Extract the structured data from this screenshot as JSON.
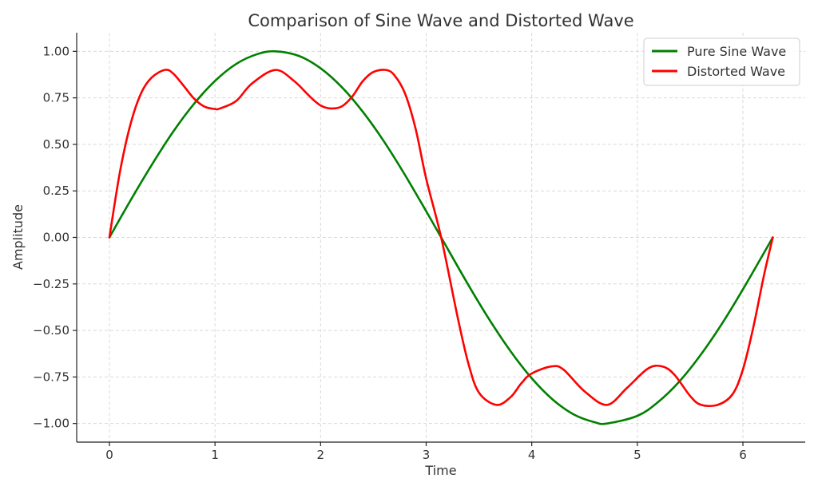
{
  "chart_data": {
    "type": "line",
    "title": "Comparison of Sine Wave and Distorted Wave",
    "xlabel": "Time",
    "ylabel": "Amplitude",
    "xlim": [
      -0.31,
      6.59
    ],
    "ylim": [
      -1.1,
      1.1
    ],
    "xticks": [
      0,
      1,
      2,
      3,
      4,
      5,
      6
    ],
    "xtick_labels": [
      "0",
      "1",
      "2",
      "3",
      "4",
      "5",
      "6"
    ],
    "yticks": [
      1.0,
      0.75,
      0.5,
      0.25,
      0.0,
      -0.25,
      -0.5,
      -0.75,
      -1.0
    ],
    "ytick_labels": [
      "1.00",
      "0.75",
      "0.50",
      "0.25",
      "0.00",
      "−0.25",
      "−0.50",
      "−0.75",
      "−1.00"
    ],
    "grid": true,
    "legend_position": "top-right",
    "series": [
      {
        "name": "Pure Sine Wave",
        "color": "#008000",
        "x": [
          0.0,
          0.2,
          0.4,
          0.6,
          0.8,
          1.0,
          1.2,
          1.4,
          1.571,
          1.8,
          2.0,
          2.2,
          2.4,
          2.6,
          2.8,
          3.0,
          3.142,
          3.4,
          3.6,
          3.8,
          4.0,
          4.2,
          4.4,
          4.6,
          4.712,
          5.0,
          5.2,
          5.4,
          5.6,
          5.8,
          6.0,
          6.283
        ],
        "y": [
          0.0,
          0.199,
          0.389,
          0.565,
          0.717,
          0.841,
          0.932,
          0.985,
          1.0,
          0.974,
          0.909,
          0.808,
          0.675,
          0.516,
          0.335,
          0.141,
          0.0,
          -0.256,
          -0.443,
          -0.612,
          -0.757,
          -0.872,
          -0.952,
          -0.994,
          -1.0,
          -0.959,
          -0.883,
          -0.773,
          -0.631,
          -0.465,
          -0.279,
          0.0
        ]
      },
      {
        "name": "Distorted Wave",
        "color": "#ff0000",
        "x": [
          0.0,
          0.1,
          0.2,
          0.3,
          0.4,
          0.524,
          0.6,
          0.7,
          0.8,
          0.9,
          1.0,
          1.047,
          1.2,
          1.35,
          1.571,
          1.75,
          1.9,
          2.0,
          2.094,
          2.2,
          2.3,
          2.4,
          2.5,
          2.618,
          2.7,
          2.8,
          2.9,
          3.0,
          3.142,
          3.3,
          3.4,
          3.5,
          3.665,
          3.8,
          3.9,
          4.0,
          4.189,
          4.3,
          4.5,
          4.712,
          4.9,
          5.1,
          5.236,
          5.35,
          5.5,
          5.6,
          5.76,
          5.9,
          6.0,
          6.1,
          6.2,
          6.283
        ],
        "y": [
          0.0,
          0.353,
          0.609,
          0.775,
          0.859,
          0.9,
          0.883,
          0.817,
          0.747,
          0.703,
          0.69,
          0.693,
          0.733,
          0.827,
          0.9,
          0.84,
          0.756,
          0.709,
          0.693,
          0.704,
          0.757,
          0.84,
          0.889,
          0.9,
          0.871,
          0.773,
          0.584,
          0.316,
          0.0,
          -0.434,
          -0.678,
          -0.834,
          -0.9,
          -0.858,
          -0.785,
          -0.731,
          -0.693,
          -0.71,
          -0.827,
          -0.9,
          -0.81,
          -0.705,
          -0.693,
          -0.737,
          -0.852,
          -0.899,
          -0.9,
          -0.844,
          -0.71,
          -0.479,
          -0.202,
          0.0
        ]
      }
    ]
  }
}
